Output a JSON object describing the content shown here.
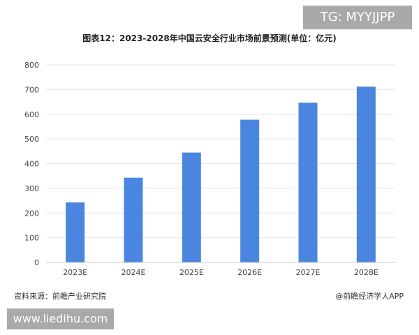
{
  "badges": {
    "top_right": "TG: MYYJJPP",
    "bottom_left": "www.liedihu.com"
  },
  "footer": {
    "source": "资料来源：前瞻产业研究院",
    "credit": "@前瞻经济学人APP"
  },
  "colors": {
    "bar": "#4a86e0",
    "grid": "#e6e6e6",
    "axis": "#c8c8c8"
  },
  "chart_data": {
    "type": "bar",
    "title": "图表12：2023-2028年中国云安全行业市场前景预测(单位：亿元)",
    "categories": [
      "2023E",
      "2024E",
      "2025E",
      "2026E",
      "2027E",
      "2028E"
    ],
    "values": [
      243,
      343,
      445,
      578,
      647,
      712
    ],
    "yticks": [
      0,
      100,
      200,
      300,
      400,
      500,
      600,
      700,
      800
    ],
    "ylim": [
      0,
      800
    ],
    "grid": true,
    "legend": "none"
  }
}
